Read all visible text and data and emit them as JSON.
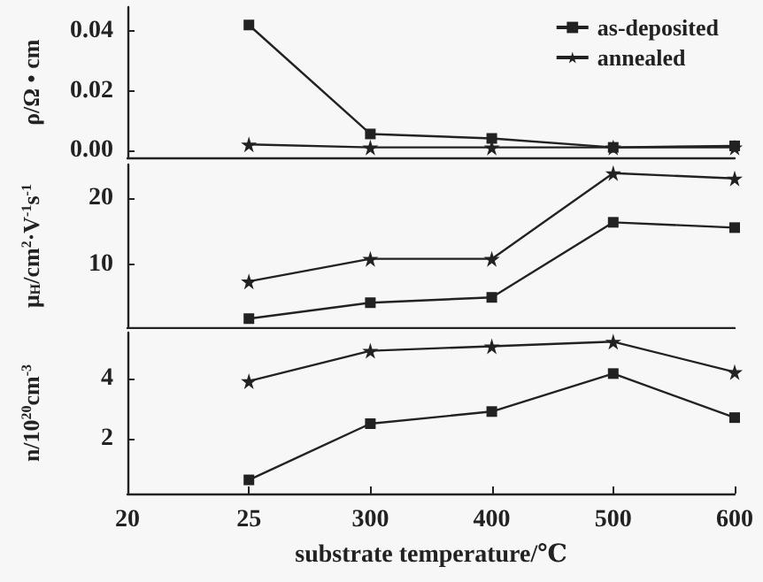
{
  "chart_data": [
    {
      "type": "line",
      "ylabel": "ρ/Ω • cm",
      "categories": [
        "20",
        "25",
        "300",
        "400",
        "500",
        "600"
      ],
      "ylim": [
        -0.0025,
        0.048
      ],
      "yticks": [
        {
          "value": 0,
          "label": "0.00"
        },
        {
          "value": 0.02,
          "label": "0.02"
        },
        {
          "value": 0.04,
          "label": "0.04"
        }
      ],
      "tick_labels": "y",
      "legend": "top right",
      "grid": false,
      "series": [
        {
          "name": "as-deposited",
          "color": "#222222",
          "marker": "square",
          "values": [
            null,
            0.042,
            0.0055,
            0.004,
            0.001,
            0.0015
          ]
        },
        {
          "name": "annealed",
          "color": "#222222",
          "marker": "star",
          "values": [
            null,
            0.002,
            0.001,
            0.001,
            0.001,
            0.001
          ]
        }
      ]
    },
    {
      "type": "line",
      "ylabel": "μ$_{H}$/cm$^{2}$·V$^{-1}$s$^{-1}$",
      "categories": [
        "20",
        "25",
        "300",
        "400",
        "500",
        "600"
      ],
      "ylim": [
        0.5,
        25
      ],
      "yticks": [
        10,
        20
      ],
      "tick_labels": "y",
      "grid": false,
      "series": [
        {
          "color": "#222222",
          "marker": "square",
          "values": [
            null,
            1.8,
            4.2,
            5.0,
            16.3,
            15.5
          ]
        },
        {
          "color": "#222222",
          "marker": "star",
          "values": [
            null,
            7.4,
            10.8,
            10.8,
            23.7,
            22.9
          ]
        }
      ]
    },
    {
      "type": "line",
      "ylabel": "n/10$^{20}$cm$^{-3}$",
      "xlabel": "substrate temperature/℃",
      "categories": [
        "20",
        "25",
        "300",
        "400",
        "500",
        "600"
      ],
      "ylim": [
        0.2,
        5.5
      ],
      "yticks": [
        2,
        4
      ],
      "grid": false,
      "series": [
        {
          "color": "#222222",
          "marker": "square",
          "values": [
            null,
            0.65,
            2.5,
            2.9,
            4.15,
            2.7
          ]
        },
        {
          "color": "#222222",
          "marker": "star",
          "values": [
            null,
            3.9,
            4.9,
            5.05,
            5.2,
            4.2
          ]
        }
      ]
    }
  ]
}
